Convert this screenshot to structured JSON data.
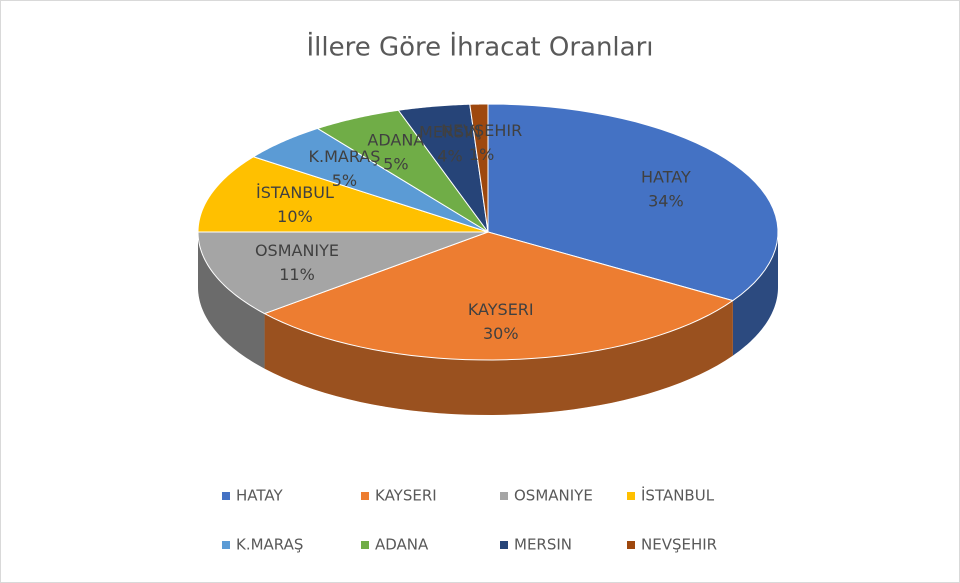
{
  "chart_data": {
    "type": "pie3d",
    "title": "İllere Göre İhracat Oranları",
    "categories": [
      "HATAY",
      "KAYSERI",
      "OSMANIYE",
      "İSTANBUL",
      "K.MARAŞ",
      "ADANA",
      "MERSIN",
      "NEVŞEHIR"
    ],
    "values": [
      34,
      30,
      11,
      10,
      5,
      5,
      4,
      1
    ],
    "value_labels": [
      "34%",
      "30%",
      "11%",
      "10%",
      "5%",
      "5%",
      "4%",
      "1%"
    ],
    "colors": [
      "#4472c4",
      "#ed7d31",
      "#a5a5a5",
      "#ffc000",
      "#5b9bd5",
      "#70ad47",
      "#264478",
      "#9e480e"
    ],
    "legend": "bottom"
  }
}
